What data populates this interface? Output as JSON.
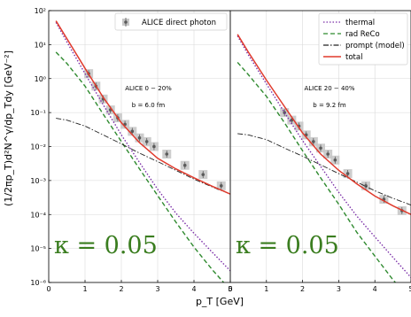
{
  "figure": {
    "ylabel": "(1/2πp_T)d²N^γ/dp_Tdy [GeV⁻²]",
    "xlabel": "p_T [GeV]"
  },
  "colors": {
    "thermal": "#7b2fa8",
    "rad_reco": "#2f8a2f",
    "prompt": "#222222",
    "total": "#e03a2c",
    "data": "#5a5a5a",
    "syst_box": "#c8c8c8",
    "kappa": "#3a7d1f"
  },
  "chart_data": [
    {
      "type": "line",
      "panel": "left",
      "annotation": [
        "ALICE 0 − 20%",
        "b = 6.0 fm"
      ],
      "kappa_label": "κ = 0.05",
      "legend": [
        {
          "name": "ALICE direct photon",
          "style": "errorbar-marker",
          "color": "#5a5a5a"
        }
      ],
      "legend_position": "top-right",
      "xlim": [
        0,
        5
      ],
      "ylim": [
        1e-06,
        100
      ],
      "yscale": "log",
      "grid": true,
      "x_ticks": [
        "0",
        "1",
        "2",
        "3",
        "4",
        "5"
      ],
      "y_ticks": [
        "10⁻⁶",
        "10⁻⁵",
        "10⁻⁴",
        "10⁻³",
        "10⁻²",
        "10⁻¹",
        "10⁰",
        "10¹",
        "10²"
      ],
      "series": [
        {
          "name": "thermal",
          "style": "dotted",
          "x": [
            0.2,
            0.5,
            1,
            1.5,
            2,
            2.5,
            3,
            3.5,
            4,
            4.5,
            5
          ],
          "y": [
            45,
            12,
            1.4,
            0.17,
            0.022,
            0.0034,
            0.00055,
            0.00011,
            2.8e-05,
            7.8e-06,
            2.2e-06
          ]
        },
        {
          "name": "rad ReCo",
          "style": "dashed",
          "x": [
            0.2,
            0.5,
            1,
            1.5,
            2,
            2.5,
            3,
            3.5,
            4,
            4.5,
            5
          ],
          "y": [
            6,
            2.8,
            0.6,
            0.09,
            0.014,
            0.0022,
            0.00036,
            6e-05,
            1.1e-05,
            2.4e-06,
            6e-07
          ]
        },
        {
          "name": "prompt (model)",
          "style": "dashdot",
          "x": [
            0.2,
            0.5,
            1,
            1.5,
            2,
            2.5,
            3,
            3.5,
            4,
            4.5,
            5
          ],
          "y": [
            0.068,
            0.06,
            0.04,
            0.022,
            0.012,
            0.0064,
            0.0036,
            0.002,
            0.0011,
            0.00065,
            0.0004
          ]
        },
        {
          "name": "total",
          "style": "solid",
          "x": [
            0.2,
            0.5,
            1,
            1.5,
            2,
            2.5,
            3,
            3.5,
            4,
            4.5,
            5
          ],
          "y": [
            50,
            15,
            2,
            0.28,
            0.05,
            0.013,
            0.0045,
            0.0022,
            0.0012,
            0.00068,
            0.0004
          ]
        },
        {
          "name": "ALICE direct photon",
          "style": "points",
          "x": [
            1.1,
            1.3,
            1.5,
            1.7,
            1.9,
            2.1,
            2.3,
            2.5,
            2.7,
            2.9,
            3.25,
            3.75,
            4.25,
            4.75
          ],
          "y": [
            1.4,
            0.6,
            0.25,
            0.12,
            0.07,
            0.045,
            0.028,
            0.018,
            0.014,
            0.01,
            0.006,
            0.0028,
            0.0015,
            0.0007
          ]
        }
      ]
    },
    {
      "type": "line",
      "panel": "right",
      "annotation": [
        "ALICE 20 − 40%",
        "b = 9.2 fm"
      ],
      "kappa_label": "κ = 0.05",
      "legend": [
        {
          "name": "thermal",
          "style": "dotted",
          "color": "#7b2fa8"
        },
        {
          "name": "rad ReCo",
          "style": "dashed",
          "color": "#2f8a2f"
        },
        {
          "name": "prompt (model)",
          "style": "dashdot",
          "color": "#222222"
        },
        {
          "name": "total",
          "style": "solid",
          "color": "#e03a2c"
        }
      ],
      "legend_position": "top-right",
      "xlim": [
        0,
        5
      ],
      "ylim": [
        1e-06,
        100
      ],
      "yscale": "log",
      "grid": true,
      "x_ticks": [
        "0",
        "1",
        "2",
        "3",
        "4",
        "5"
      ],
      "series": [
        {
          "name": "thermal",
          "style": "dotted",
          "x": [
            0.2,
            0.5,
            1,
            1.5,
            2,
            2.5,
            3,
            3.5,
            4,
            4.5,
            5
          ],
          "y": [
            18,
            5,
            0.7,
            0.1,
            0.015,
            0.0026,
            0.00045,
            9e-05,
            2.2e-05,
            5.5e-06,
            1.4e-06
          ]
        },
        {
          "name": "rad ReCo",
          "style": "dashed",
          "x": [
            0.2,
            0.5,
            1,
            1.5,
            2,
            2.5,
            3,
            3.5,
            4,
            4.5,
            5
          ],
          "y": [
            3,
            1.3,
            0.3,
            0.05,
            0.0075,
            0.0012,
            0.0002,
            3e-05,
            6e-06,
            1.2e-06,
            3e-07
          ]
        },
        {
          "name": "prompt (model)",
          "style": "dashdot",
          "x": [
            0.2,
            0.5,
            1,
            1.5,
            2,
            2.5,
            3,
            3.5,
            4,
            4.5,
            5
          ],
          "y": [
            0.024,
            0.022,
            0.016,
            0.009,
            0.0052,
            0.0029,
            0.0016,
            0.0009,
            0.0005,
            0.0003,
            0.00019
          ]
        },
        {
          "name": "total",
          "style": "solid",
          "x": [
            0.2,
            0.5,
            1,
            1.5,
            2,
            2.5,
            3,
            3.5,
            4,
            4.5,
            5
          ],
          "y": [
            20,
            6,
            0.9,
            0.15,
            0.025,
            0.006,
            0.002,
            0.0008,
            0.00035,
            0.00018,
            0.0001
          ]
        },
        {
          "name": "ALICE direct photon",
          "style": "points",
          "x": [
            1.5,
            1.7,
            1.9,
            2.1,
            2.3,
            2.5,
            2.7,
            2.9,
            3.25,
            3.75,
            4.25,
            4.75
          ],
          "y": [
            0.1,
            0.06,
            0.04,
            0.022,
            0.014,
            0.009,
            0.006,
            0.004,
            0.0016,
            0.0007,
            0.00028,
            0.00013
          ]
        }
      ]
    }
  ]
}
